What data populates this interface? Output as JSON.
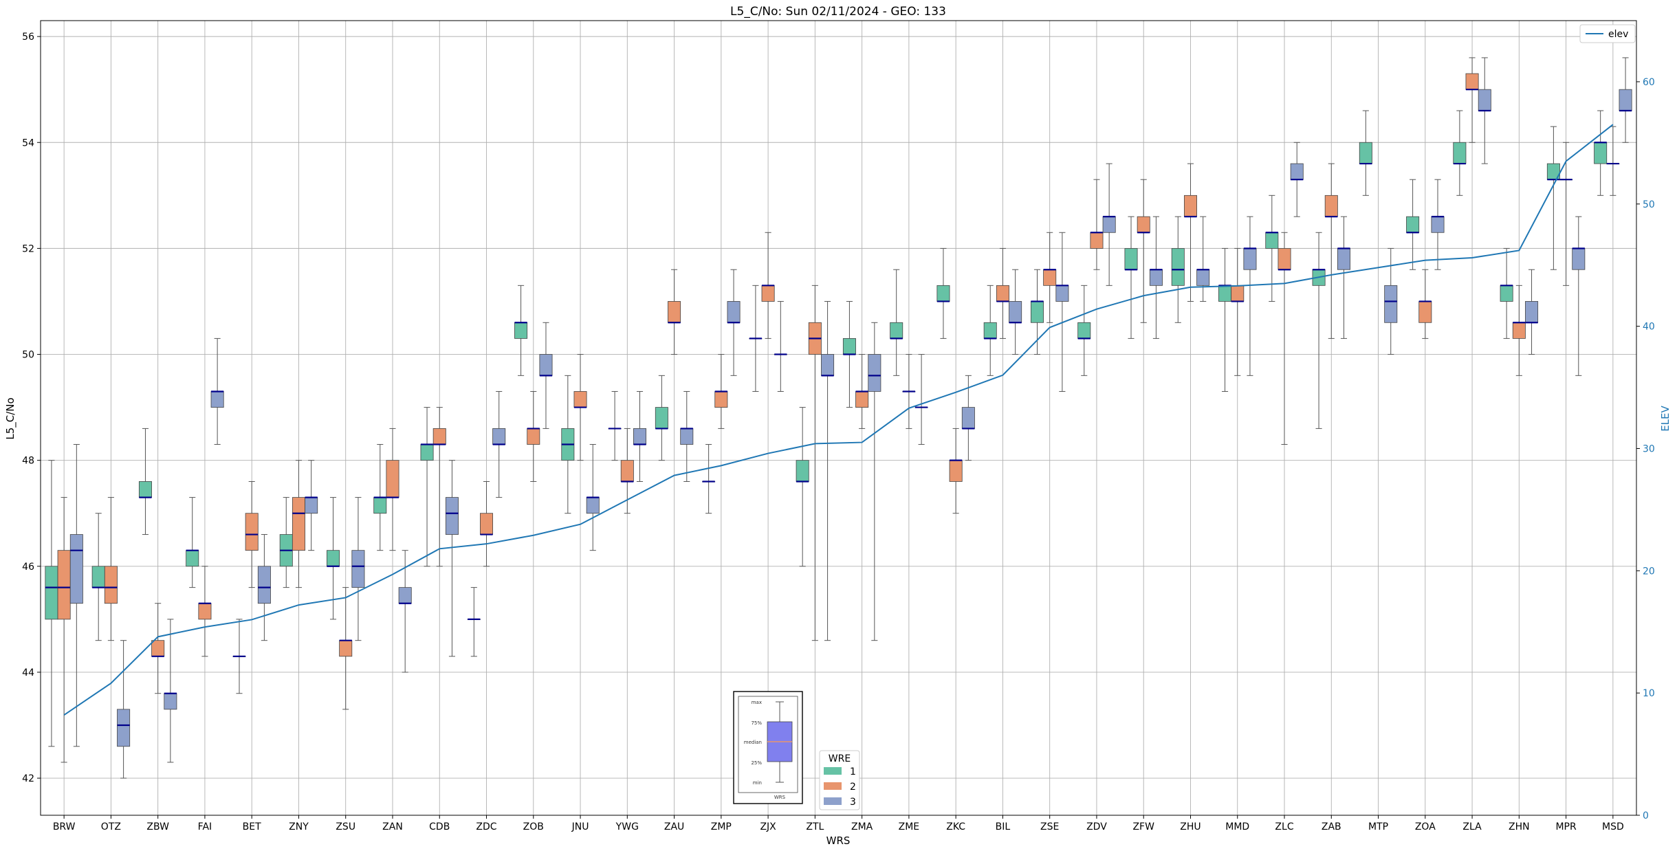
{
  "chart_data": {
    "type": "box",
    "title": "L5_C/No: Sun 02/11/2024 - GEO: 133",
    "xlabel": "WRS",
    "ylabel": "L5_C/No",
    "y2label": "ELEV",
    "ylim": [
      41.3,
      56.3
    ],
    "y2lim": [
      0,
      65
    ],
    "yticks": [
      42,
      44,
      46,
      48,
      50,
      52,
      54,
      56
    ],
    "y2ticks": [
      0,
      10,
      20,
      30,
      40,
      50,
      60
    ],
    "categories": [
      "BRW",
      "OTZ",
      "ZBW",
      "FAI",
      "BET",
      "ZNY",
      "ZSU",
      "ZAN",
      "CDB",
      "ZDC",
      "ZOB",
      "JNU",
      "YWG",
      "ZAU",
      "ZMP",
      "ZJX",
      "ZTL",
      "ZMA",
      "ZME",
      "ZKC",
      "BIL",
      "ZSE",
      "ZDV",
      "ZFW",
      "ZHU",
      "MMD",
      "ZLC",
      "ZAB",
      "MTP",
      "ZOA",
      "ZLA",
      "ZHN",
      "MPR",
      "MSD"
    ],
    "legend_title": "WRE",
    "series_colors": {
      "1": "#66c2a5",
      "2": "#e8956d",
      "3": "#8da0cb"
    },
    "elev_color": "#1f77b4",
    "elev_legend": "elev",
    "elev": [
      8.2,
      10.8,
      14.6,
      15.4,
      16.0,
      17.2,
      17.8,
      19.7,
      21.8,
      22.2,
      22.9,
      23.8,
      25.8,
      27.8,
      28.6,
      29.6,
      30.4,
      30.5,
      33.3,
      34.6,
      36.0,
      39.9,
      41.4,
      42.5,
      43.2,
      43.3,
      43.5,
      44.2,
      44.8,
      45.4,
      45.6,
      46.2,
      53.5,
      56.5
    ],
    "boxes": [
      {
        "wrs": "BRW",
        "wre": 1,
        "whislo": 42.6,
        "q1": 45.0,
        "med": 45.6,
        "q3": 46.0,
        "whishi": 48.0
      },
      {
        "wrs": "BRW",
        "wre": 2,
        "whislo": 42.3,
        "q1": 45.0,
        "med": 45.6,
        "q3": 46.3,
        "whishi": 47.3
      },
      {
        "wrs": "BRW",
        "wre": 3,
        "whislo": 42.6,
        "q1": 45.3,
        "med": 46.3,
        "q3": 46.6,
        "whishi": 48.3
      },
      {
        "wrs": "OTZ",
        "wre": 1,
        "whislo": 44.6,
        "q1": 45.6,
        "med": 45.6,
        "q3": 46.0,
        "whishi": 47.0
      },
      {
        "wrs": "OTZ",
        "wre": 2,
        "whislo": 44.6,
        "q1": 45.3,
        "med": 45.6,
        "q3": 46.0,
        "whishi": 47.3
      },
      {
        "wrs": "OTZ",
        "wre": 3,
        "whislo": 42.0,
        "q1": 42.6,
        "med": 43.0,
        "q3": 43.3,
        "whishi": 44.6
      },
      {
        "wrs": "ZBW",
        "wre": 1,
        "whislo": 46.6,
        "q1": 47.3,
        "med": 47.3,
        "q3": 47.6,
        "whishi": 48.6
      },
      {
        "wrs": "ZBW",
        "wre": 2,
        "whislo": 43.6,
        "q1": 44.3,
        "med": 44.3,
        "q3": 44.6,
        "whishi": 45.3
      },
      {
        "wrs": "ZBW",
        "wre": 3,
        "whislo": 42.3,
        "q1": 43.3,
        "med": 43.6,
        "q3": 43.6,
        "whishi": 45.0
      },
      {
        "wrs": "FAI",
        "wre": 1,
        "whislo": 45.6,
        "q1": 46.0,
        "med": 46.3,
        "q3": 46.3,
        "whishi": 47.3
      },
      {
        "wrs": "FAI",
        "wre": 2,
        "whislo": 44.3,
        "q1": 45.0,
        "med": 45.3,
        "q3": 45.3,
        "whishi": 46.0
      },
      {
        "wrs": "FAI",
        "wre": 3,
        "whislo": 48.3,
        "q1": 49.0,
        "med": 49.3,
        "q3": 49.3,
        "whishi": 50.3
      },
      {
        "wrs": "BET",
        "wre": 1,
        "whislo": 43.6,
        "q1": 44.3,
        "med": 44.3,
        "q3": 44.3,
        "whishi": 45.0
      },
      {
        "wrs": "BET",
        "wre": 2,
        "whislo": 45.6,
        "q1": 46.3,
        "med": 46.6,
        "q3": 47.0,
        "whishi": 47.6
      },
      {
        "wrs": "BET",
        "wre": 3,
        "whislo": 44.6,
        "q1": 45.3,
        "med": 45.6,
        "q3": 46.0,
        "whishi": 46.6
      },
      {
        "wrs": "ZNY",
        "wre": 1,
        "whislo": 45.6,
        "q1": 46.0,
        "med": 46.3,
        "q3": 46.6,
        "whishi": 47.3
      },
      {
        "wrs": "ZNY",
        "wre": 2,
        "whislo": 45.6,
        "q1": 46.3,
        "med": 47.0,
        "q3": 47.3,
        "whishi": 48.0
      },
      {
        "wrs": "ZNY",
        "wre": 3,
        "whislo": 46.3,
        "q1": 47.0,
        "med": 47.3,
        "q3": 47.3,
        "whishi": 48.0
      },
      {
        "wrs": "ZSU",
        "wre": 1,
        "whislo": 45.0,
        "q1": 46.0,
        "med": 46.0,
        "q3": 46.3,
        "whishi": 47.3
      },
      {
        "wrs": "ZSU",
        "wre": 2,
        "whislo": 43.3,
        "q1": 44.3,
        "med": 44.6,
        "q3": 44.6,
        "whishi": 45.6
      },
      {
        "wrs": "ZSU",
        "wre": 3,
        "whislo": 44.6,
        "q1": 45.6,
        "med": 46.0,
        "q3": 46.3,
        "whishi": 47.3
      },
      {
        "wrs": "ZAN",
        "wre": 1,
        "whislo": 46.3,
        "q1": 47.0,
        "med": 47.3,
        "q3": 47.3,
        "whishi": 48.3
      },
      {
        "wrs": "ZAN",
        "wre": 2,
        "whislo": 46.3,
        "q1": 47.3,
        "med": 47.3,
        "q3": 48.0,
        "whishi": 48.6
      },
      {
        "wrs": "ZAN",
        "wre": 3,
        "whislo": 44.0,
        "q1": 45.3,
        "med": 45.3,
        "q3": 45.6,
        "whishi": 46.3
      },
      {
        "wrs": "CDB",
        "wre": 1,
        "whislo": 46.0,
        "q1": 48.0,
        "med": 48.3,
        "q3": 48.3,
        "whishi": 49.0
      },
      {
        "wrs": "CDB",
        "wre": 2,
        "whislo": 46.0,
        "q1": 48.3,
        "med": 48.3,
        "q3": 48.6,
        "whishi": 49.0
      },
      {
        "wrs": "CDB",
        "wre": 3,
        "whislo": 44.3,
        "q1": 46.6,
        "med": 47.0,
        "q3": 47.3,
        "whishi": 48.0
      },
      {
        "wrs": "ZDC",
        "wre": 1,
        "whislo": 44.3,
        "q1": 45.0,
        "med": 45.0,
        "q3": 45.0,
        "whishi": 45.6
      },
      {
        "wrs": "ZDC",
        "wre": 2,
        "whislo": 46.0,
        "q1": 46.6,
        "med": 46.6,
        "q3": 47.0,
        "whishi": 47.6
      },
      {
        "wrs": "ZDC",
        "wre": 3,
        "whislo": 47.3,
        "q1": 48.3,
        "med": 48.3,
        "q3": 48.6,
        "whishi": 49.3
      },
      {
        "wrs": "ZOB",
        "wre": 1,
        "whislo": 49.6,
        "q1": 50.3,
        "med": 50.6,
        "q3": 50.6,
        "whishi": 51.3
      },
      {
        "wrs": "ZOB",
        "wre": 2,
        "whislo": 47.6,
        "q1": 48.3,
        "med": 48.6,
        "q3": 48.6,
        "whishi": 49.3
      },
      {
        "wrs": "ZOB",
        "wre": 3,
        "whislo": 48.6,
        "q1": 49.6,
        "med": 49.6,
        "q3": 50.0,
        "whishi": 50.6
      },
      {
        "wrs": "JNU",
        "wre": 1,
        "whislo": 47.0,
        "q1": 48.0,
        "med": 48.3,
        "q3": 48.6,
        "whishi": 49.6
      },
      {
        "wrs": "JNU",
        "wre": 2,
        "whislo": 48.0,
        "q1": 49.0,
        "med": 49.0,
        "q3": 49.3,
        "whishi": 50.0
      },
      {
        "wrs": "JNU",
        "wre": 3,
        "whislo": 46.3,
        "q1": 47.0,
        "med": 47.3,
        "q3": 47.3,
        "whishi": 48.3
      },
      {
        "wrs": "YWG",
        "wre": 1,
        "whislo": 48.0,
        "q1": 48.6,
        "med": 48.6,
        "q3": 48.6,
        "whishi": 49.3
      },
      {
        "wrs": "YWG",
        "wre": 2,
        "whislo": 47.0,
        "q1": 47.6,
        "med": 47.6,
        "q3": 48.0,
        "whishi": 48.6
      },
      {
        "wrs": "YWG",
        "wre": 3,
        "whislo": 47.6,
        "q1": 48.3,
        "med": 48.3,
        "q3": 48.6,
        "whishi": 49.3
      },
      {
        "wrs": "ZAU",
        "wre": 1,
        "whislo": 48.0,
        "q1": 48.6,
        "med": 48.6,
        "q3": 49.0,
        "whishi": 49.6
      },
      {
        "wrs": "ZAU",
        "wre": 2,
        "whislo": 50.0,
        "q1": 50.6,
        "med": 50.6,
        "q3": 51.0,
        "whishi": 51.6
      },
      {
        "wrs": "ZAU",
        "wre": 3,
        "whislo": 47.6,
        "q1": 48.3,
        "med": 48.6,
        "q3": 48.6,
        "whishi": 49.3
      },
      {
        "wrs": "ZMP",
        "wre": 1,
        "whislo": 47.0,
        "q1": 47.6,
        "med": 47.6,
        "q3": 47.6,
        "whishi": 48.3
      },
      {
        "wrs": "ZMP",
        "wre": 2,
        "whislo": 48.6,
        "q1": 49.0,
        "med": 49.3,
        "q3": 49.3,
        "whishi": 50.0
      },
      {
        "wrs": "ZMP",
        "wre": 3,
        "whislo": 49.6,
        "q1": 50.6,
        "med": 50.6,
        "q3": 51.0,
        "whishi": 51.6
      },
      {
        "wrs": "ZJX",
        "wre": 1,
        "whislo": 49.3,
        "q1": 50.3,
        "med": 50.3,
        "q3": 50.3,
        "whishi": 51.3
      },
      {
        "wrs": "ZJX",
        "wre": 2,
        "whislo": 50.3,
        "q1": 51.0,
        "med": 51.3,
        "q3": 51.3,
        "whishi": 52.3
      },
      {
        "wrs": "ZJX",
        "wre": 3,
        "whislo": 49.3,
        "q1": 50.0,
        "med": 50.0,
        "q3": 50.0,
        "whishi": 51.0
      },
      {
        "wrs": "ZTL",
        "wre": 1,
        "whislo": 46.0,
        "q1": 47.6,
        "med": 47.6,
        "q3": 48.0,
        "whishi": 49.0
      },
      {
        "wrs": "ZTL",
        "wre": 2,
        "whislo": 44.6,
        "q1": 50.0,
        "med": 50.3,
        "q3": 50.6,
        "whishi": 51.3
      },
      {
        "wrs": "ZTL",
        "wre": 3,
        "whislo": 44.6,
        "q1": 49.6,
        "med": 49.6,
        "q3": 50.0,
        "whishi": 51.0
      },
      {
        "wrs": "ZMA",
        "wre": 1,
        "whislo": 49.0,
        "q1": 50.0,
        "med": 50.0,
        "q3": 50.3,
        "whishi": 51.0
      },
      {
        "wrs": "ZMA",
        "wre": 2,
        "whislo": 48.6,
        "q1": 49.0,
        "med": 49.3,
        "q3": 49.3,
        "whishi": 50.0
      },
      {
        "wrs": "ZMA",
        "wre": 3,
        "whislo": 44.6,
        "q1": 49.3,
        "med": 49.6,
        "q3": 50.0,
        "whishi": 50.6
      },
      {
        "wrs": "ZME",
        "wre": 1,
        "whislo": 49.6,
        "q1": 50.3,
        "med": 50.3,
        "q3": 50.6,
        "whishi": 51.6
      },
      {
        "wrs": "ZME",
        "wre": 2,
        "whislo": 48.6,
        "q1": 49.3,
        "med": 49.3,
        "q3": 49.3,
        "whishi": 50.0
      },
      {
        "wrs": "ZME",
        "wre": 3,
        "whislo": 48.3,
        "q1": 49.0,
        "med": 49.0,
        "q3": 49.0,
        "whishi": 50.0
      },
      {
        "wrs": "ZKC",
        "wre": 1,
        "whislo": 50.3,
        "q1": 51.0,
        "med": 51.0,
        "q3": 51.3,
        "whishi": 52.0
      },
      {
        "wrs": "ZKC",
        "wre": 2,
        "whislo": 47.0,
        "q1": 47.6,
        "med": 48.0,
        "q3": 48.0,
        "whishi": 48.6
      },
      {
        "wrs": "ZKC",
        "wre": 3,
        "whislo": 48.0,
        "q1": 48.6,
        "med": 48.6,
        "q3": 49.0,
        "whishi": 49.6
      },
      {
        "wrs": "BIL",
        "wre": 1,
        "whislo": 49.6,
        "q1": 50.3,
        "med": 50.3,
        "q3": 50.6,
        "whishi": 51.3
      },
      {
        "wrs": "BIL",
        "wre": 2,
        "whislo": 50.3,
        "q1": 51.0,
        "med": 51.0,
        "q3": 51.3,
        "whishi": 52.0
      },
      {
        "wrs": "BIL",
        "wre": 3,
        "whislo": 50.0,
        "q1": 50.6,
        "med": 50.6,
        "q3": 51.0,
        "whishi": 51.6
      },
      {
        "wrs": "ZSE",
        "wre": 1,
        "whislo": 50.0,
        "q1": 50.6,
        "med": 51.0,
        "q3": 51.0,
        "whishi": 51.6
      },
      {
        "wrs": "ZSE",
        "wre": 2,
        "whislo": 50.6,
        "q1": 51.3,
        "med": 51.6,
        "q3": 51.6,
        "whishi": 52.3
      },
      {
        "wrs": "ZSE",
        "wre": 3,
        "whislo": 49.3,
        "q1": 51.0,
        "med": 51.3,
        "q3": 51.3,
        "whishi": 52.3
      },
      {
        "wrs": "ZDV",
        "wre": 1,
        "whislo": 49.6,
        "q1": 50.3,
        "med": 50.3,
        "q3": 50.6,
        "whishi": 51.3
      },
      {
        "wrs": "ZDV",
        "wre": 2,
        "whislo": 51.6,
        "q1": 52.0,
        "med": 52.3,
        "q3": 52.3,
        "whishi": 53.3
      },
      {
        "wrs": "ZDV",
        "wre": 3,
        "whislo": 51.3,
        "q1": 52.3,
        "med": 52.6,
        "q3": 52.6,
        "whishi": 53.6
      },
      {
        "wrs": "ZFW",
        "wre": 1,
        "whislo": 50.3,
        "q1": 51.6,
        "med": 51.6,
        "q3": 52.0,
        "whishi": 52.6
      },
      {
        "wrs": "ZFW",
        "wre": 2,
        "whislo": 50.6,
        "q1": 52.3,
        "med": 52.3,
        "q3": 52.6,
        "whishi": 53.3
      },
      {
        "wrs": "ZFW",
        "wre": 3,
        "whislo": 50.3,
        "q1": 51.3,
        "med": 51.6,
        "q3": 51.6,
        "whishi": 52.6
      },
      {
        "wrs": "ZHU",
        "wre": 1,
        "whislo": 50.6,
        "q1": 51.3,
        "med": 51.6,
        "q3": 52.0,
        "whishi": 52.6
      },
      {
        "wrs": "ZHU",
        "wre": 2,
        "whislo": 51.0,
        "q1": 52.6,
        "med": 52.6,
        "q3": 53.0,
        "whishi": 53.6
      },
      {
        "wrs": "ZHU",
        "wre": 3,
        "whislo": 51.0,
        "q1": 51.3,
        "med": 51.6,
        "q3": 51.6,
        "whishi": 52.6
      },
      {
        "wrs": "MMD",
        "wre": 1,
        "whislo": 49.3,
        "q1": 51.0,
        "med": 51.3,
        "q3": 51.3,
        "whishi": 52.0
      },
      {
        "wrs": "MMD",
        "wre": 2,
        "whislo": 49.6,
        "q1": 51.0,
        "med": 51.0,
        "q3": 51.3,
        "whishi": 52.0
      },
      {
        "wrs": "MMD",
        "wre": 3,
        "whislo": 49.6,
        "q1": 51.6,
        "med": 52.0,
        "q3": 52.0,
        "whishi": 52.6
      },
      {
        "wrs": "ZLC",
        "wre": 1,
        "whislo": 51.0,
        "q1": 52.0,
        "med": 52.3,
        "q3": 52.3,
        "whishi": 53.0
      },
      {
        "wrs": "ZLC",
        "wre": 2,
        "whislo": 48.3,
        "q1": 51.6,
        "med": 51.6,
        "q3": 52.0,
        "whishi": 52.3
      },
      {
        "wrs": "ZLC",
        "wre": 3,
        "whislo": 52.6,
        "q1": 53.3,
        "med": 53.3,
        "q3": 53.6,
        "whishi": 54.0
      },
      {
        "wrs": "ZAB",
        "wre": 1,
        "whislo": 48.6,
        "q1": 51.3,
        "med": 51.6,
        "q3": 51.6,
        "whishi": 52.3
      },
      {
        "wrs": "ZAB",
        "wre": 2,
        "whislo": 50.3,
        "q1": 52.6,
        "med": 52.6,
        "q3": 53.0,
        "whishi": 53.6
      },
      {
        "wrs": "ZAB",
        "wre": 3,
        "whislo": 50.3,
        "q1": 51.6,
        "med": 52.0,
        "q3": 52.0,
        "whishi": 52.6
      },
      {
        "wrs": "MTP",
        "wre": 1,
        "whislo": 53.0,
        "q1": 53.6,
        "med": 53.6,
        "q3": 54.0,
        "whishi": 54.6
      },
      {
        "wrs": "MTP",
        "wre": 2,
        "whislo": null,
        "q1": null,
        "med": null,
        "q3": null,
        "whishi": null
      },
      {
        "wrs": "MTP",
        "wre": 3,
        "whislo": 50.0,
        "q1": 50.6,
        "med": 51.0,
        "q3": 51.3,
        "whishi": 52.0
      },
      {
        "wrs": "ZOA",
        "wre": 1,
        "whislo": 51.6,
        "q1": 52.3,
        "med": 52.3,
        "q3": 52.6,
        "whishi": 53.3
      },
      {
        "wrs": "ZOA",
        "wre": 2,
        "whislo": 50.3,
        "q1": 50.6,
        "med": 51.0,
        "q3": 51.0,
        "whishi": 51.6
      },
      {
        "wrs": "ZOA",
        "wre": 3,
        "whislo": 51.6,
        "q1": 52.3,
        "med": 52.6,
        "q3": 52.6,
        "whishi": 53.3
      },
      {
        "wrs": "ZLA",
        "wre": 1,
        "whislo": 53.0,
        "q1": 53.6,
        "med": 53.6,
        "q3": 54.0,
        "whishi": 54.6
      },
      {
        "wrs": "ZLA",
        "wre": 2,
        "whislo": 54.0,
        "q1": 55.0,
        "med": 55.0,
        "q3": 55.3,
        "whishi": 55.6
      },
      {
        "wrs": "ZLA",
        "wre": 3,
        "whislo": 53.6,
        "q1": 54.6,
        "med": 54.6,
        "q3": 55.0,
        "whishi": 55.6
      },
      {
        "wrs": "ZHN",
        "wre": 1,
        "whislo": 50.3,
        "q1": 51.0,
        "med": 51.3,
        "q3": 51.3,
        "whishi": 52.0
      },
      {
        "wrs": "ZHN",
        "wre": 2,
        "whislo": 49.6,
        "q1": 50.3,
        "med": 50.6,
        "q3": 50.6,
        "whishi": 51.3
      },
      {
        "wrs": "ZHN",
        "wre": 3,
        "whislo": 50.0,
        "q1": 50.6,
        "med": 50.6,
        "q3": 51.0,
        "whishi": 51.6
      },
      {
        "wrs": "MPR",
        "wre": 1,
        "whislo": 51.6,
        "q1": 53.3,
        "med": 53.3,
        "q3": 53.6,
        "whishi": 54.3
      },
      {
        "wrs": "MPR",
        "wre": 2,
        "whislo": 51.3,
        "q1": 53.3,
        "med": 53.3,
        "q3": 53.3,
        "whishi": 54.0
      },
      {
        "wrs": "MPR",
        "wre": 3,
        "whislo": 49.6,
        "q1": 51.6,
        "med": 52.0,
        "q3": 52.0,
        "whishi": 52.6
      },
      {
        "wrs": "MSD",
        "wre": 1,
        "whislo": 53.0,
        "q1": 53.6,
        "med": 54.0,
        "q3": 54.0,
        "whishi": 54.6
      },
      {
        "wrs": "MSD",
        "wre": 2,
        "whislo": 53.0,
        "q1": 53.6,
        "med": 53.6,
        "q3": 53.6,
        "whishi": 54.3
      },
      {
        "wrs": "MSD",
        "wre": 3,
        "whislo": 54.0,
        "q1": 54.6,
        "med": 54.6,
        "q3": 55.0,
        "whishi": 55.6
      }
    ],
    "inset_labels": [
      "max",
      "75%",
      "median",
      "25%",
      "min"
    ],
    "inset_xlabel": "WRS"
  }
}
